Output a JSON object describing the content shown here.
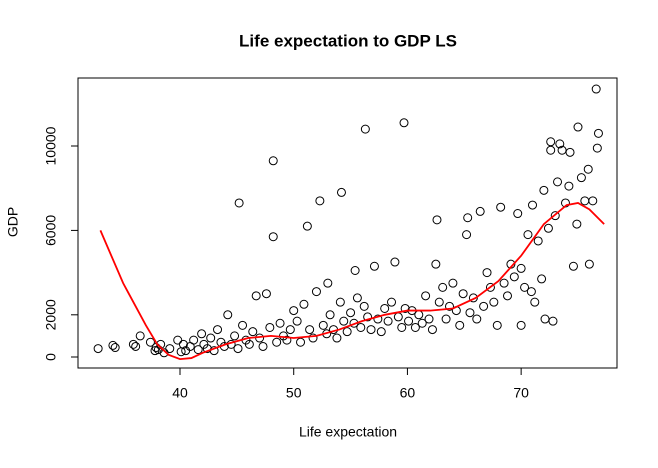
{
  "chart_data": {
    "type": "scatter",
    "title": "Life expectation to GDP LS",
    "x_label": "Life expectation",
    "y_label": "GDP",
    "xlim": [
      31.03,
      78.43
    ],
    "ylim": [
      -521,
      13223
    ],
    "xticks": [
      40,
      50,
      60,
      70
    ],
    "yticks": [
      0,
      2000,
      6000,
      10000
    ],
    "series": [
      {
        "color": "#000000",
        "x": [
          32.8,
          34.1,
          34.3,
          35.9,
          36.1,
          36.5,
          37.4,
          37.8,
          37.9,
          38.1,
          38.3,
          38.6,
          39.1,
          39.8,
          40.1,
          40.3,
          40.5,
          40.9,
          41.2,
          41.6,
          41.9,
          42.1,
          42.4,
          42.7,
          43.0,
          43.3,
          43.6,
          43.9,
          44.2,
          44.5,
          44.8,
          45.1,
          45.2,
          45.5,
          45.8,
          46.1,
          46.4,
          46.7,
          47.0,
          47.3,
          47.6,
          47.9,
          48.2,
          48.2,
          48.5,
          48.8,
          49.1,
          49.4,
          49.7,
          50.0,
          50.3,
          50.6,
          50.9,
          51.2,
          51.4,
          51.7,
          52.0,
          52.3,
          52.6,
          52.9,
          53.0,
          53.2,
          53.5,
          53.8,
          54.1,
          54.2,
          54.4,
          54.7,
          55.0,
          55.3,
          55.4,
          55.6,
          55.9,
          56.2,
          56.3,
          56.5,
          56.8,
          57.1,
          57.4,
          57.7,
          58.0,
          58.3,
          58.6,
          58.9,
          59.2,
          59.5,
          59.7,
          59.8,
          60.1,
          60.4,
          60.7,
          61.0,
          61.3,
          61.6,
          61.9,
          62.2,
          62.5,
          62.6,
          62.8,
          63.1,
          63.4,
          63.7,
          64.0,
          64.3,
          64.6,
          64.9,
          65.2,
          65.3,
          65.5,
          65.8,
          66.1,
          66.4,
          66.7,
          67.0,
          67.3,
          67.6,
          67.9,
          68.2,
          68.5,
          68.8,
          69.1,
          69.4,
          69.7,
          70.0,
          70.0,
          70.3,
          70.6,
          70.9,
          71.0,
          71.2,
          71.5,
          71.8,
          72.0,
          72.1,
          72.4,
          72.6,
          72.6,
          72.8,
          73.0,
          73.2,
          73.4,
          73.6,
          73.9,
          74.2,
          74.3,
          74.6,
          74.9,
          75.0,
          75.3,
          75.6,
          75.9,
          76.0,
          76.3,
          76.6,
          76.7,
          76.8
        ],
        "values": [
          400,
          550,
          450,
          600,
          500,
          1000,
          700,
          300,
          450,
          350,
          600,
          200,
          400,
          800,
          250,
          600,
          300,
          500,
          800,
          350,
          1100,
          600,
          400,
          900,
          300,
          1300,
          700,
          500,
          2000,
          600,
          1000,
          400,
          7300,
          1500,
          800,
          600,
          1200,
          2900,
          900,
          500,
          3000,
          1400,
          9300,
          5700,
          700,
          1600,
          1000,
          800,
          1300,
          2200,
          1700,
          700,
          2500,
          6200,
          1300,
          900,
          3100,
          7400,
          1500,
          1100,
          3500,
          2000,
          1300,
          900,
          2600,
          7800,
          1700,
          1200,
          2100,
          1600,
          4100,
          2800,
          1400,
          2400,
          10800,
          1900,
          1300,
          4300,
          1800,
          1200,
          2300,
          1700,
          2600,
          4500,
          1900,
          1400,
          11100,
          2300,
          1700,
          2200,
          1400,
          2000,
          1600,
          2900,
          1800,
          1300,
          4400,
          6500,
          2600,
          3300,
          1800,
          2400,
          3500,
          2200,
          1500,
          3000,
          5800,
          6600,
          2100,
          2800,
          1800,
          6900,
          2400,
          4000,
          3300,
          2600,
          1500,
          7100,
          3500,
          2900,
          4400,
          3800,
          6800,
          1500,
          4200,
          3300,
          5800,
          3100,
          7200,
          2600,
          5500,
          3700,
          7900,
          1800,
          6100,
          9800,
          10200,
          1700,
          6700,
          8300,
          10100,
          9800,
          7300,
          8100,
          9700,
          4300,
          6300,
          10900,
          8500,
          7400,
          8900,
          4400,
          7400,
          12700,
          9900,
          10600
        ]
      },
      {
        "type": "line",
        "color": "#ff0000",
        "x": [
          33,
          35,
          37,
          38,
          39,
          40,
          41,
          42,
          44,
          46,
          48,
          50,
          52,
          54,
          56,
          58,
          60,
          62,
          64,
          66,
          68,
          70,
          72,
          74,
          75,
          76,
          77.3
        ],
        "values": [
          6000,
          3500,
          1500,
          600,
          100,
          -100,
          -50,
          200,
          600,
          900,
          1000,
          900,
          1000,
          1300,
          1700,
          2000,
          2200,
          2200,
          2300,
          2800,
          3600,
          4800,
          6300,
          7200,
          7300,
          7000,
          6300
        ]
      }
    ]
  }
}
